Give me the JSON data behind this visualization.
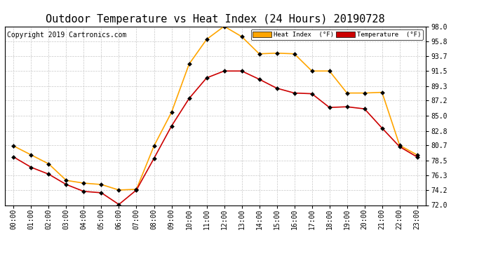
{
  "title": "Outdoor Temperature vs Heat Index (24 Hours) 20190728",
  "copyright": "Copyright 2019 Cartronics.com",
  "hours": [
    "00:00",
    "01:00",
    "02:00",
    "03:00",
    "04:00",
    "05:00",
    "06:00",
    "07:00",
    "08:00",
    "09:00",
    "10:00",
    "11:00",
    "12:00",
    "13:00",
    "14:00",
    "15:00",
    "16:00",
    "17:00",
    "18:00",
    "19:00",
    "20:00",
    "21:00",
    "22:00",
    "23:00"
  ],
  "heat_index": [
    80.6,
    79.3,
    78.0,
    75.6,
    75.2,
    75.0,
    74.2,
    74.3,
    80.6,
    85.5,
    92.5,
    96.1,
    98.0,
    96.5,
    94.0,
    94.1,
    94.0,
    91.5,
    91.5,
    88.3,
    88.3,
    88.4,
    80.7,
    79.3
  ],
  "temperature": [
    79.0,
    77.5,
    76.5,
    75.0,
    74.0,
    73.8,
    72.1,
    74.2,
    78.8,
    83.5,
    87.5,
    90.5,
    91.5,
    91.5,
    90.3,
    89.0,
    88.3,
    88.2,
    86.2,
    86.3,
    86.0,
    83.2,
    80.5,
    79.0
  ],
  "heat_index_color": "#FFA500",
  "temperature_color": "#CC0000",
  "ylim": [
    72.0,
    98.0
  ],
  "yticks": [
    72.0,
    74.2,
    76.3,
    78.5,
    80.7,
    82.8,
    85.0,
    87.2,
    89.3,
    91.5,
    93.7,
    95.8,
    98.0
  ],
  "background_color": "#ffffff",
  "plot_background": "#ffffff",
  "grid_color": "#c8c8c8",
  "legend_heat_bg": "#FFA500",
  "legend_temp_bg": "#CC0000",
  "title_fontsize": 11,
  "copyright_fontsize": 7,
  "tick_fontsize": 7,
  "marker": "D",
  "markersize": 3,
  "linewidth": 1.2
}
